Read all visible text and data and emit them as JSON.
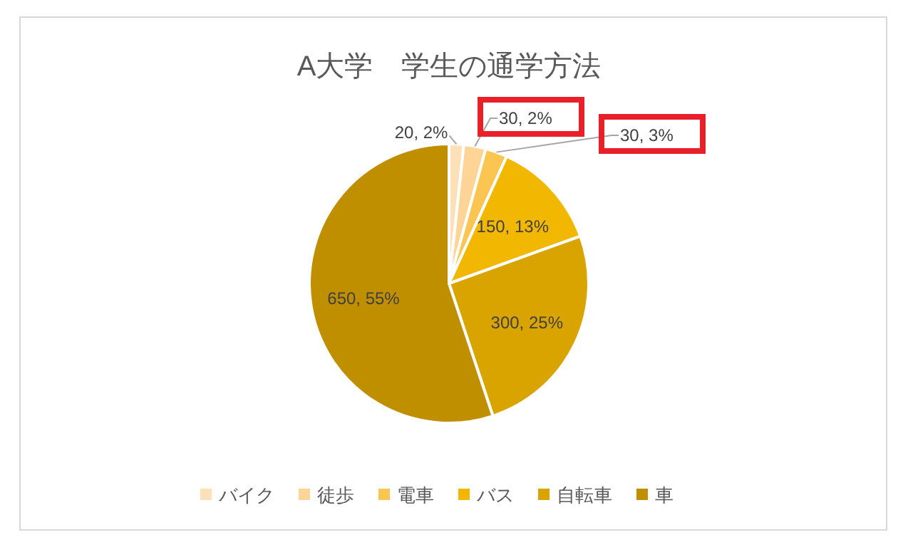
{
  "chart_data": {
    "type": "pie",
    "title": "A大学　学生の通学方法",
    "categories": [
      "バイク",
      "徒歩",
      "電車",
      "バス",
      "自転車",
      "車"
    ],
    "values": [
      20,
      30,
      30,
      150,
      300,
      650
    ],
    "colors": [
      "#fde0b8",
      "#ffd597",
      "#fbc552",
      "#f2b700",
      "#d9a300",
      "#bf8f00"
    ],
    "value_labels": [
      "20, 2%",
      "30, 2%",
      "30, 3%",
      "150, 13%",
      "300, 25%",
      "650, 55%"
    ],
    "legend": "bottom"
  }
}
